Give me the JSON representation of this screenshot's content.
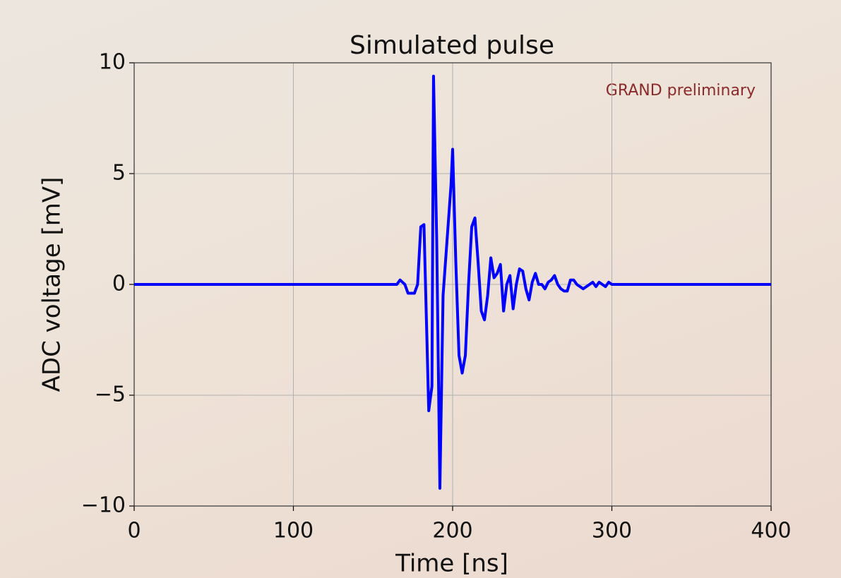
{
  "chart_data": {
    "type": "line",
    "title": "Simulated pulse",
    "annotation": "GRAND preliminary",
    "annotation_color": "#8b2a2a",
    "x_label": "Time [ns]",
    "y_label": "ADC voltage [mV]",
    "x": [
      0,
      165,
      167,
      170,
      172,
      176,
      178,
      180,
      182,
      185,
      187,
      188,
      190,
      192,
      194,
      196,
      199,
      200,
      202,
      204,
      206,
      208,
      210,
      212,
      214,
      216,
      218,
      220,
      222,
      224,
      226,
      228,
      230,
      232,
      234,
      236,
      238,
      240,
      242,
      244,
      246,
      248,
      250,
      252,
      254,
      256,
      258,
      260,
      262,
      264,
      266,
      268,
      270,
      272,
      274,
      276,
      278,
      280,
      282,
      284,
      286,
      288,
      290,
      292,
      294,
      296,
      298,
      300,
      400
    ],
    "series": [
      {
        "color": "#0000ff",
        "values": [
          0,
          0,
          0.2,
          0,
          -0.4,
          -0.4,
          0,
          2.6,
          2.7,
          -5.7,
          -4.6,
          9.4,
          2,
          -9.2,
          -0.5,
          1.5,
          4.5,
          6.1,
          1,
          -3.2,
          -4.0,
          -3.2,
          0,
          2.6,
          3.0,
          1,
          -1.2,
          -1.6,
          -0.5,
          1.2,
          0.3,
          0.5,
          0.9,
          -1.2,
          0,
          0.4,
          -1.1,
          0,
          0.7,
          0.6,
          -0.2,
          -0.7,
          0.1,
          0.5,
          0,
          0,
          -0.2,
          0.1,
          0.2,
          0.4,
          0,
          -0.2,
          -0.3,
          -0.3,
          0.2,
          0.2,
          0,
          -0.1,
          -0.2,
          -0.1,
          0,
          0.1,
          -0.1,
          0.1,
          0,
          -0.1,
          0.1,
          0,
          0
        ]
      }
    ],
    "xlim": [
      0,
      400
    ],
    "xticks": [
      0,
      100,
      200,
      300,
      400
    ],
    "ylim": [
      -10,
      10
    ],
    "yticks": [
      {
        "value": -10,
        "label": "−10"
      },
      {
        "value": -5,
        "label": "−5"
      },
      0,
      5,
      10
    ],
    "grid": true
  }
}
